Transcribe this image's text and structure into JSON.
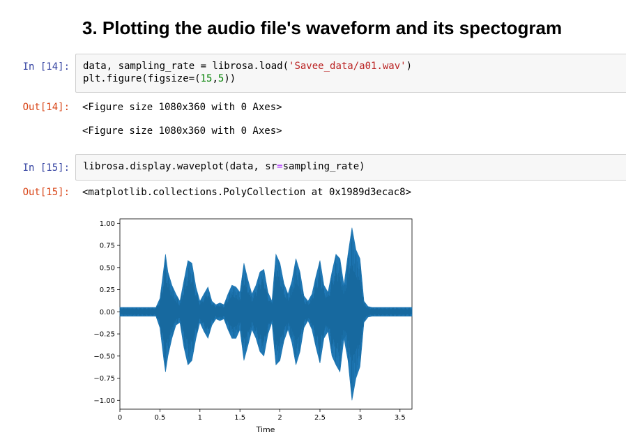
{
  "heading": "3. Plotting the audio file's waveform and its spectogram",
  "cells": [
    {
      "in_prompt": "In [14]:",
      "code": {
        "l1a": "data, sampling_rate = librosa.load(",
        "l1b": "'Savee_data/a01.wav'",
        "l1c": ")",
        "l2a": "plt.figure(figsize=(",
        "l2b": "15",
        "l2c": ",",
        "l2d": "5",
        "l2e": "))"
      },
      "out_prompt": "Out[14]:",
      "outputs": [
        "<Figure size 1080x360 with 0 Axes>",
        "<Figure size 1080x360 with 0 Axes>"
      ]
    },
    {
      "in_prompt": "In [15]:",
      "code": {
        "l1a": "librosa.display.waveplot(data, sr",
        "l1b": "=",
        "l1c": "sampling_rate)"
      },
      "out_prompt": "Out[15]:",
      "outputs": [
        "<matplotlib.collections.PolyCollection at 0x1989d3ecac8>"
      ]
    }
  ],
  "chart_data": {
    "type": "area",
    "xlabel": "Time",
    "ylabel": "",
    "xlim": [
      0,
      3.65
    ],
    "ylim": [
      -1.1,
      1.05
    ],
    "xticks": [
      0,
      0.5,
      1,
      1.5,
      2,
      2.5,
      3,
      3.5
    ],
    "xtick_labels": [
      "0",
      "0.5",
      "1",
      "1.5",
      "2",
      "2.5",
      "3",
      "3.5"
    ],
    "yticks": [
      1.0,
      0.75,
      0.5,
      0.25,
      0.0,
      -0.25,
      -0.5,
      -0.75,
      -1.0
    ],
    "ytick_labels": [
      "1.00",
      "0.75",
      "0.50",
      "0.25",
      "0.00",
      "−0.25",
      "−0.50",
      "−0.75",
      "−1.00"
    ],
    "series": [
      {
        "color": "#1f77b4",
        "time": [
          0,
          0.45,
          0.5,
          0.55,
          0.57,
          0.6,
          0.65,
          0.7,
          0.75,
          0.8,
          0.85,
          0.9,
          0.95,
          1.0,
          1.05,
          1.1,
          1.15,
          1.2,
          1.25,
          1.3,
          1.35,
          1.4,
          1.45,
          1.5,
          1.55,
          1.6,
          1.65,
          1.7,
          1.75,
          1.8,
          1.85,
          1.9,
          1.95,
          2.0,
          2.05,
          2.1,
          2.15,
          2.2,
          2.25,
          2.3,
          2.35,
          2.4,
          2.45,
          2.5,
          2.55,
          2.6,
          2.65,
          2.7,
          2.75,
          2.8,
          2.85,
          2.9,
          2.95,
          3.0,
          3.05,
          3.1,
          3.15,
          3.65
        ],
        "upper": [
          0.05,
          0.05,
          0.15,
          0.5,
          0.65,
          0.45,
          0.3,
          0.2,
          0.12,
          0.35,
          0.58,
          0.55,
          0.28,
          0.12,
          0.2,
          0.28,
          0.12,
          0.08,
          0.1,
          0.08,
          0.2,
          0.3,
          0.28,
          0.22,
          0.55,
          0.36,
          0.2,
          0.3,
          0.45,
          0.48,
          0.22,
          0.12,
          0.65,
          0.55,
          0.32,
          0.2,
          0.35,
          0.6,
          0.45,
          0.18,
          0.12,
          0.2,
          0.4,
          0.58,
          0.3,
          0.22,
          0.45,
          0.65,
          0.6,
          0.3,
          0.65,
          0.95,
          0.7,
          0.6,
          0.12,
          0.06,
          0.05,
          0.05
        ],
        "lower": [
          -0.05,
          -0.05,
          -0.18,
          -0.55,
          -0.68,
          -0.5,
          -0.3,
          -0.15,
          -0.12,
          -0.4,
          -0.6,
          -0.55,
          -0.3,
          -0.12,
          -0.22,
          -0.3,
          -0.15,
          -0.08,
          -0.1,
          -0.08,
          -0.2,
          -0.3,
          -0.3,
          -0.2,
          -0.55,
          -0.38,
          -0.2,
          -0.3,
          -0.45,
          -0.5,
          -0.25,
          -0.12,
          -0.6,
          -0.55,
          -0.33,
          -0.2,
          -0.35,
          -0.6,
          -0.45,
          -0.18,
          -0.1,
          -0.2,
          -0.4,
          -0.58,
          -0.3,
          -0.22,
          -0.5,
          -0.6,
          -0.68,
          -0.3,
          -0.55,
          -1.0,
          -0.75,
          -0.62,
          -0.12,
          -0.06,
          -0.05,
          -0.05
        ]
      }
    ]
  }
}
